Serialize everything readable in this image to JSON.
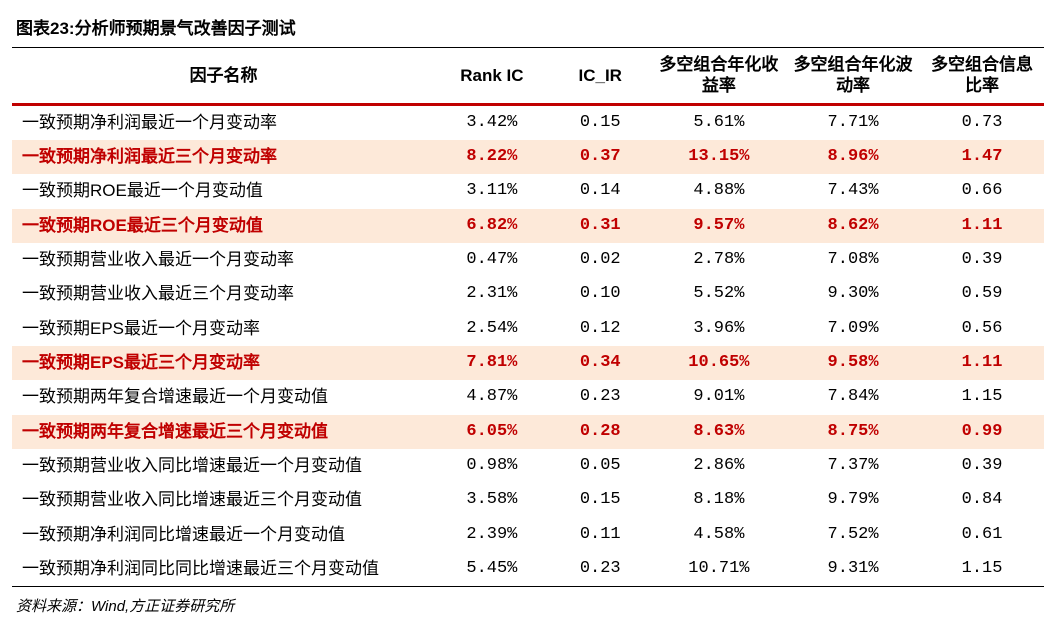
{
  "title": "图表23:分析师预期景气改善因子测试",
  "source": "资料来源：Wind,方正证券研究所",
  "colors": {
    "highlight_bg": "#fde9d9",
    "highlight_text": "#c00000",
    "header_border": "#c00000",
    "text": "#000000",
    "background": "#ffffff"
  },
  "columns": [
    {
      "key": "factor",
      "label": "因子名称"
    },
    {
      "key": "rank_ic",
      "label": "Rank IC"
    },
    {
      "key": "ic_ir",
      "label": "IC_IR"
    },
    {
      "key": "ls_ret",
      "label": "多空组合年化收益率"
    },
    {
      "key": "ls_vol",
      "label": "多空组合年化波动率"
    },
    {
      "key": "ls_ir",
      "label": "多空组合信息比率"
    }
  ],
  "rows": [
    {
      "highlight": false,
      "factor": "一致预期净利润最近一个月变动率",
      "rank_ic": "3.42%",
      "ic_ir": "0.15",
      "ls_ret": "5.61%",
      "ls_vol": "7.71%",
      "ls_ir": "0.73"
    },
    {
      "highlight": true,
      "factor": "一致预期净利润最近三个月变动率",
      "rank_ic": "8.22%",
      "ic_ir": "0.37",
      "ls_ret": "13.15%",
      "ls_vol": "8.96%",
      "ls_ir": "1.47"
    },
    {
      "highlight": false,
      "factor": "一致预期ROE最近一个月变动值",
      "rank_ic": "3.11%",
      "ic_ir": "0.14",
      "ls_ret": "4.88%",
      "ls_vol": "7.43%",
      "ls_ir": "0.66"
    },
    {
      "highlight": true,
      "factor": "一致预期ROE最近三个月变动值",
      "rank_ic": "6.82%",
      "ic_ir": "0.31",
      "ls_ret": "9.57%",
      "ls_vol": "8.62%",
      "ls_ir": "1.11"
    },
    {
      "highlight": false,
      "factor": "一致预期营业收入最近一个月变动率",
      "rank_ic": "0.47%",
      "ic_ir": "0.02",
      "ls_ret": "2.78%",
      "ls_vol": "7.08%",
      "ls_ir": "0.39"
    },
    {
      "highlight": false,
      "factor": "一致预期营业收入最近三个月变动率",
      "rank_ic": "2.31%",
      "ic_ir": "0.10",
      "ls_ret": "5.52%",
      "ls_vol": "9.30%",
      "ls_ir": "0.59"
    },
    {
      "highlight": false,
      "factor": "一致预期EPS最近一个月变动率",
      "rank_ic": "2.54%",
      "ic_ir": "0.12",
      "ls_ret": "3.96%",
      "ls_vol": "7.09%",
      "ls_ir": "0.56"
    },
    {
      "highlight": true,
      "factor": "一致预期EPS最近三个月变动率",
      "rank_ic": "7.81%",
      "ic_ir": "0.34",
      "ls_ret": "10.65%",
      "ls_vol": "9.58%",
      "ls_ir": "1.11"
    },
    {
      "highlight": false,
      "factor": "一致预期两年复合增速最近一个月变动值",
      "rank_ic": "4.87%",
      "ic_ir": "0.23",
      "ls_ret": "9.01%",
      "ls_vol": "7.84%",
      "ls_ir": "1.15"
    },
    {
      "highlight": true,
      "factor": "一致预期两年复合增速最近三个月变动值",
      "rank_ic": "6.05%",
      "ic_ir": "0.28",
      "ls_ret": "8.63%",
      "ls_vol": "8.75%",
      "ls_ir": "0.99"
    },
    {
      "highlight": false,
      "factor": "一致预期营业收入同比增速最近一个月变动值",
      "rank_ic": "0.98%",
      "ic_ir": "0.05",
      "ls_ret": "2.86%",
      "ls_vol": "7.37%",
      "ls_ir": "0.39"
    },
    {
      "highlight": false,
      "factor": "一致预期营业收入同比增速最近三个月变动值",
      "rank_ic": "3.58%",
      "ic_ir": "0.15",
      "ls_ret": "8.18%",
      "ls_vol": "9.79%",
      "ls_ir": "0.84"
    },
    {
      "highlight": false,
      "factor": "一致预期净利润同比增速最近一个月变动值",
      "rank_ic": "2.39%",
      "ic_ir": "0.11",
      "ls_ret": "4.58%",
      "ls_vol": "7.52%",
      "ls_ir": "0.61"
    },
    {
      "highlight": false,
      "factor": "一致预期净利润同比同比增速最近三个月变动值",
      "rank_ic": "5.45%",
      "ic_ir": "0.23",
      "ls_ret": "10.71%",
      "ls_vol": "9.31%",
      "ls_ir": "1.15"
    }
  ]
}
